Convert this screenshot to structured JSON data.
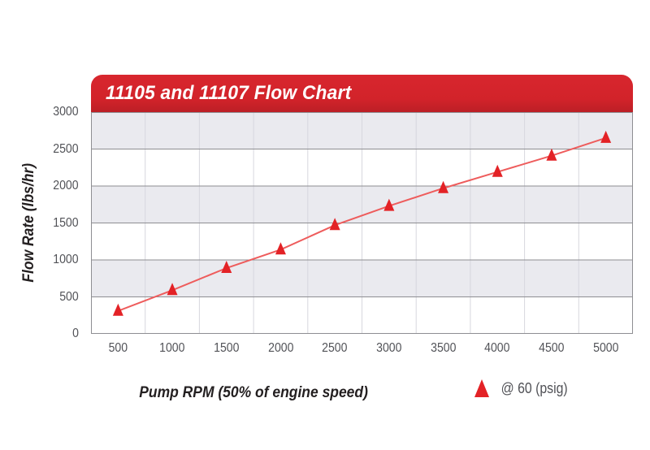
{
  "header": {
    "title": "11105 and 11107 Flow Chart"
  },
  "chart_data": {
    "type": "line",
    "title": "11105 and 11107 Flow Chart",
    "xlabel": "Pump RPM (50% of engine speed)",
    "ylabel": "Flow Rate (lbs/hr)",
    "x": [
      500,
      1000,
      1500,
      2000,
      2500,
      3000,
      3500,
      4000,
      4500,
      5000
    ],
    "series": [
      {
        "name": "@ 60 (psig)",
        "marker": "triangle",
        "values": [
          310,
          590,
          890,
          1140,
          1470,
          1730,
          1970,
          2190,
          2410,
          2650
        ]
      }
    ],
    "ylim": [
      0,
      3000
    ],
    "y_ticks": [
      0,
      500,
      1000,
      1500,
      2000,
      2500,
      3000
    ],
    "x_ticks": [
      500,
      1000,
      1500,
      2000,
      2500,
      3000,
      3500,
      4000,
      4500,
      5000
    ],
    "grid": {
      "horizontal": true,
      "vertical": true,
      "alternating_bands": true
    },
    "legend_position": "bottom-right"
  },
  "colors": {
    "banner_red": "#d2232a",
    "marker_red": "#e32226",
    "line_red": "#ee5c5c",
    "band_gray": "#eaeaef",
    "grid_major": "#8e8e92",
    "grid_minor": "#d7d7de",
    "tick_text": "#515257",
    "axis_label_text": "#231f20",
    "title_text": "#ffffff"
  }
}
